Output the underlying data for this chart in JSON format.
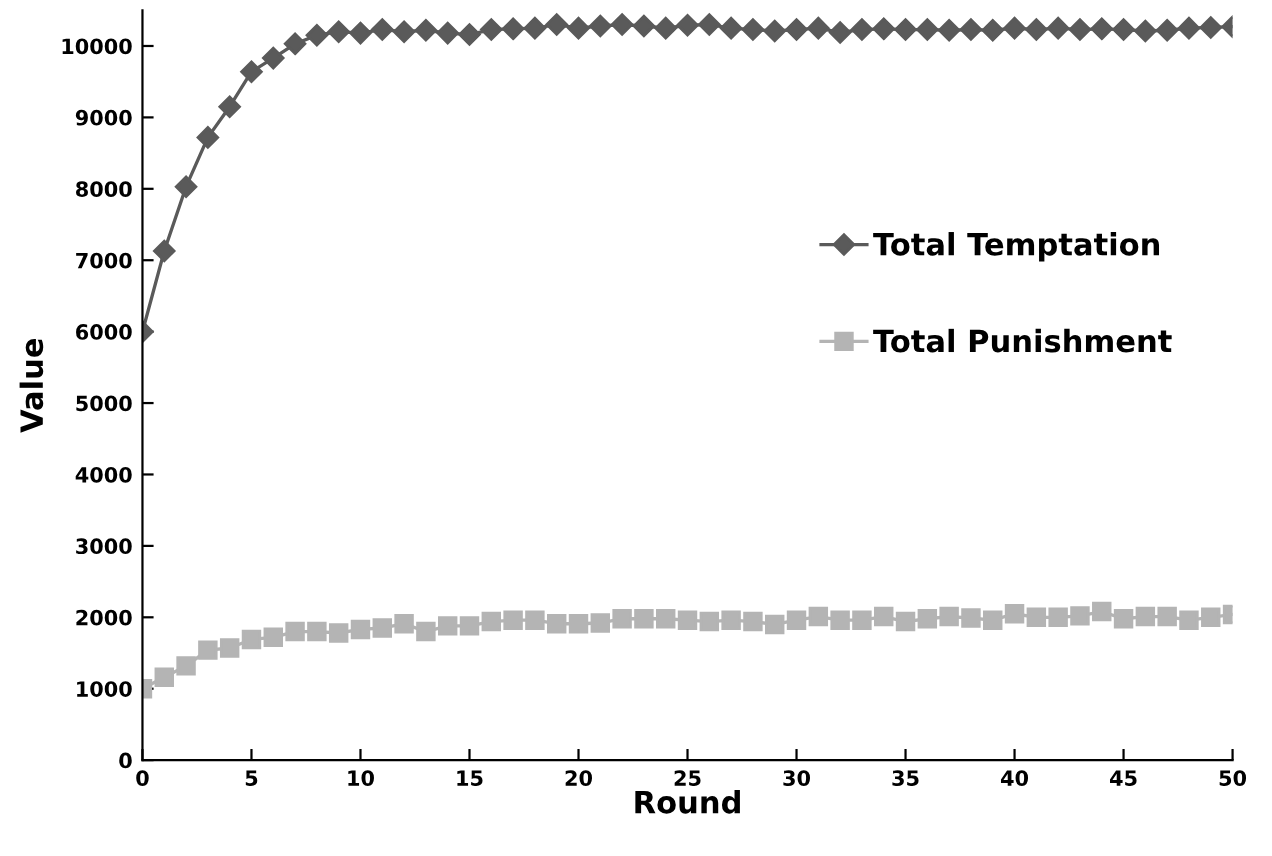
{
  "chart_data": {
    "type": "line",
    "xlabel": "Round",
    "ylabel": "Value",
    "x": [
      0,
      1,
      2,
      3,
      4,
      5,
      6,
      7,
      8,
      9,
      10,
      11,
      12,
      13,
      14,
      15,
      16,
      17,
      18,
      19,
      20,
      21,
      22,
      23,
      24,
      25,
      26,
      27,
      28,
      29,
      30,
      31,
      32,
      33,
      34,
      35,
      36,
      37,
      38,
      39,
      40,
      41,
      42,
      43,
      44,
      45,
      46,
      47,
      48,
      49,
      50
    ],
    "series": [
      {
        "name": "Total Temptation",
        "color": "#5a5a5a",
        "marker": "diamond",
        "values": [
          6000,
          7130,
          8030,
          8720,
          9150,
          9640,
          9830,
          10030,
          10150,
          10200,
          10180,
          10230,
          10200,
          10220,
          10180,
          10160,
          10230,
          10240,
          10250,
          10300,
          10250,
          10280,
          10300,
          10280,
          10250,
          10290,
          10300,
          10250,
          10230,
          10210,
          10230,
          10250,
          10190,
          10230,
          10240,
          10230,
          10230,
          10220,
          10230,
          10220,
          10250,
          10230,
          10250,
          10230,
          10240,
          10230,
          10210,
          10220,
          10250,
          10260,
          10270
        ]
      },
      {
        "name": "Total Punishment",
        "color": "#b4b4b4",
        "marker": "square",
        "values": [
          1000,
          1160,
          1320,
          1540,
          1570,
          1690,
          1720,
          1800,
          1800,
          1780,
          1830,
          1850,
          1910,
          1800,
          1880,
          1880,
          1940,
          1960,
          1960,
          1910,
          1910,
          1920,
          1980,
          1980,
          1980,
          1960,
          1940,
          1960,
          1940,
          1900,
          1960,
          2010,
          1960,
          1960,
          2010,
          1940,
          1980,
          2010,
          1990,
          1960,
          2050,
          2000,
          2000,
          2020,
          2080,
          1980,
          2010,
          2010,
          1960,
          2000,
          2040
        ]
      }
    ],
    "xlim": [
      0,
      50
    ],
    "xticks": [
      0,
      5,
      10,
      15,
      20,
      25,
      30,
      35,
      40,
      45,
      50
    ],
    "ylim": [
      0,
      10500
    ],
    "yticks": [
      0,
      1000,
      2000,
      3000,
      4000,
      5000,
      6000,
      7000,
      8000,
      9000,
      10000
    ],
    "grid": false,
    "legend": "right"
  }
}
